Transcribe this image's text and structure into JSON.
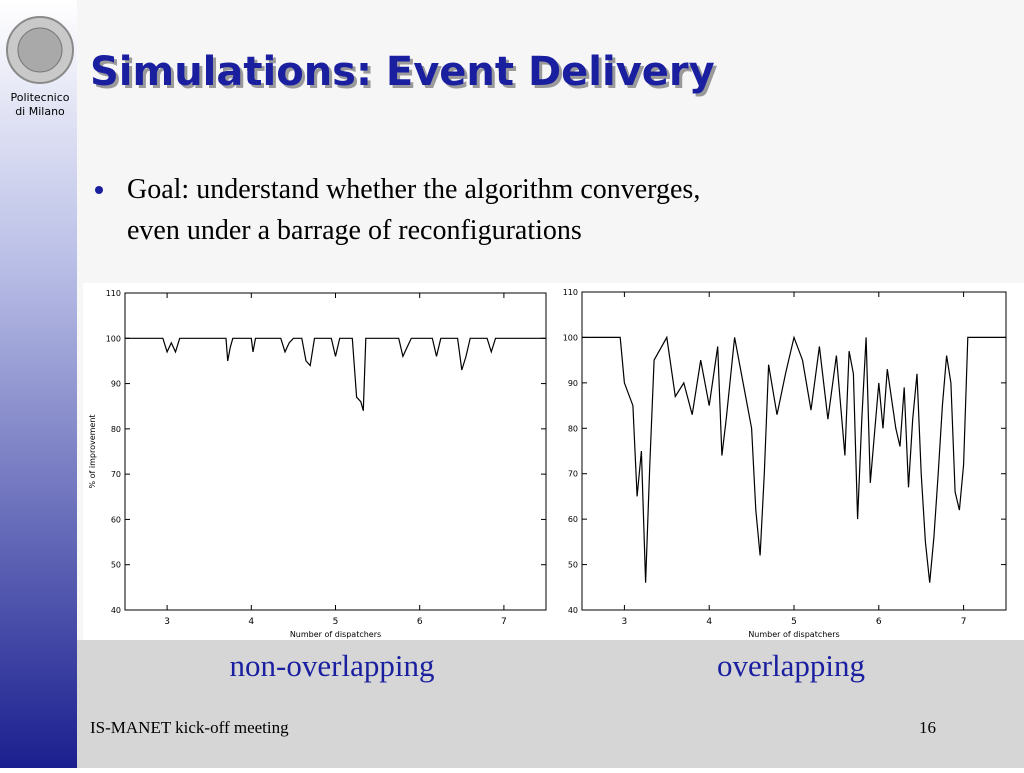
{
  "slide": {
    "logo": [
      "Politecnico",
      "di Milano"
    ],
    "title": "Simulations: Event Delivery",
    "bullet": [
      "Goal: understand whether the algorithm converges,",
      "even under a barrage of reconfigurations"
    ],
    "footer": "IS-MANET kick-off meeting",
    "page": "16"
  },
  "chart_data": [
    {
      "type": "line",
      "caption": "non-overlapping",
      "xlabel": "Number of dispatchers",
      "ylabel": "% of improvement",
      "color": "#000000",
      "xlim": [
        2.5,
        7.5
      ],
      "xticks": [
        3,
        4,
        5,
        6,
        7
      ],
      "ylim": [
        40,
        110
      ],
      "yticks": [
        40,
        50,
        60,
        70,
        80,
        90,
        100,
        110
      ],
      "x": [
        2.5,
        2.95,
        3.0,
        3.05,
        3.1,
        3.15,
        3.7,
        3.72,
        3.75,
        3.78,
        4.0,
        4.02,
        4.05,
        4.35,
        4.4,
        4.45,
        4.5,
        4.6,
        4.65,
        4.7,
        4.75,
        4.95,
        5.0,
        5.05,
        5.2,
        5.25,
        5.3,
        5.33,
        5.36,
        5.38,
        5.75,
        5.8,
        5.85,
        5.9,
        6.15,
        6.2,
        6.25,
        6.35,
        6.45,
        6.5,
        6.55,
        6.6,
        6.8,
        6.85,
        6.9,
        7.5
      ],
      "values": [
        100,
        100,
        97,
        99,
        97,
        100,
        100,
        95,
        98,
        100,
        100,
        97,
        100,
        100,
        97,
        99,
        100,
        100,
        95,
        94,
        100,
        100,
        96,
        100,
        100,
        87,
        86,
        84,
        100,
        100,
        100,
        96,
        98,
        100,
        100,
        96,
        100,
        100,
        100,
        93,
        96,
        100,
        100,
        97,
        100,
        100
      ]
    },
    {
      "type": "line",
      "caption": "overlapping",
      "xlabel": "Number of dispatchers",
      "color": "#000000",
      "xlim": [
        2.5,
        7.5
      ],
      "xticks": [
        3,
        4,
        5,
        6,
        7
      ],
      "ylim": [
        40,
        110
      ],
      "yticks": [
        40,
        50,
        60,
        70,
        80,
        90,
        100,
        110
      ],
      "x": [
        2.5,
        2.95,
        3.0,
        3.1,
        3.15,
        3.2,
        3.25,
        3.3,
        3.35,
        3.5,
        3.6,
        3.7,
        3.8,
        3.9,
        4.0,
        4.1,
        4.15,
        4.2,
        4.3,
        4.4,
        4.5,
        4.55,
        4.6,
        4.65,
        4.7,
        4.8,
        4.9,
        5.0,
        5.1,
        5.2,
        5.3,
        5.4,
        5.5,
        5.6,
        5.65,
        5.7,
        5.75,
        5.8,
        5.85,
        5.9,
        6.0,
        6.05,
        6.1,
        6.2,
        6.25,
        6.3,
        6.35,
        6.4,
        6.45,
        6.5,
        6.55,
        6.6,
        6.65,
        6.7,
        6.75,
        6.8,
        6.85,
        6.9,
        6.95,
        7.0,
        7.05,
        7.5
      ],
      "values": [
        100,
        100,
        90,
        85,
        65,
        75,
        46,
        72,
        95,
        100,
        87,
        90,
        83,
        95,
        85,
        98,
        74,
        82,
        100,
        90,
        80,
        62,
        52,
        70,
        94,
        83,
        92,
        100,
        95,
        84,
        98,
        82,
        96,
        74,
        97,
        92,
        60,
        82,
        100,
        68,
        90,
        80,
        93,
        80,
        76,
        89,
        67,
        82,
        92,
        70,
        55,
        46,
        56,
        70,
        85,
        96,
        90,
        66,
        62,
        72,
        100,
        100
      ]
    }
  ]
}
